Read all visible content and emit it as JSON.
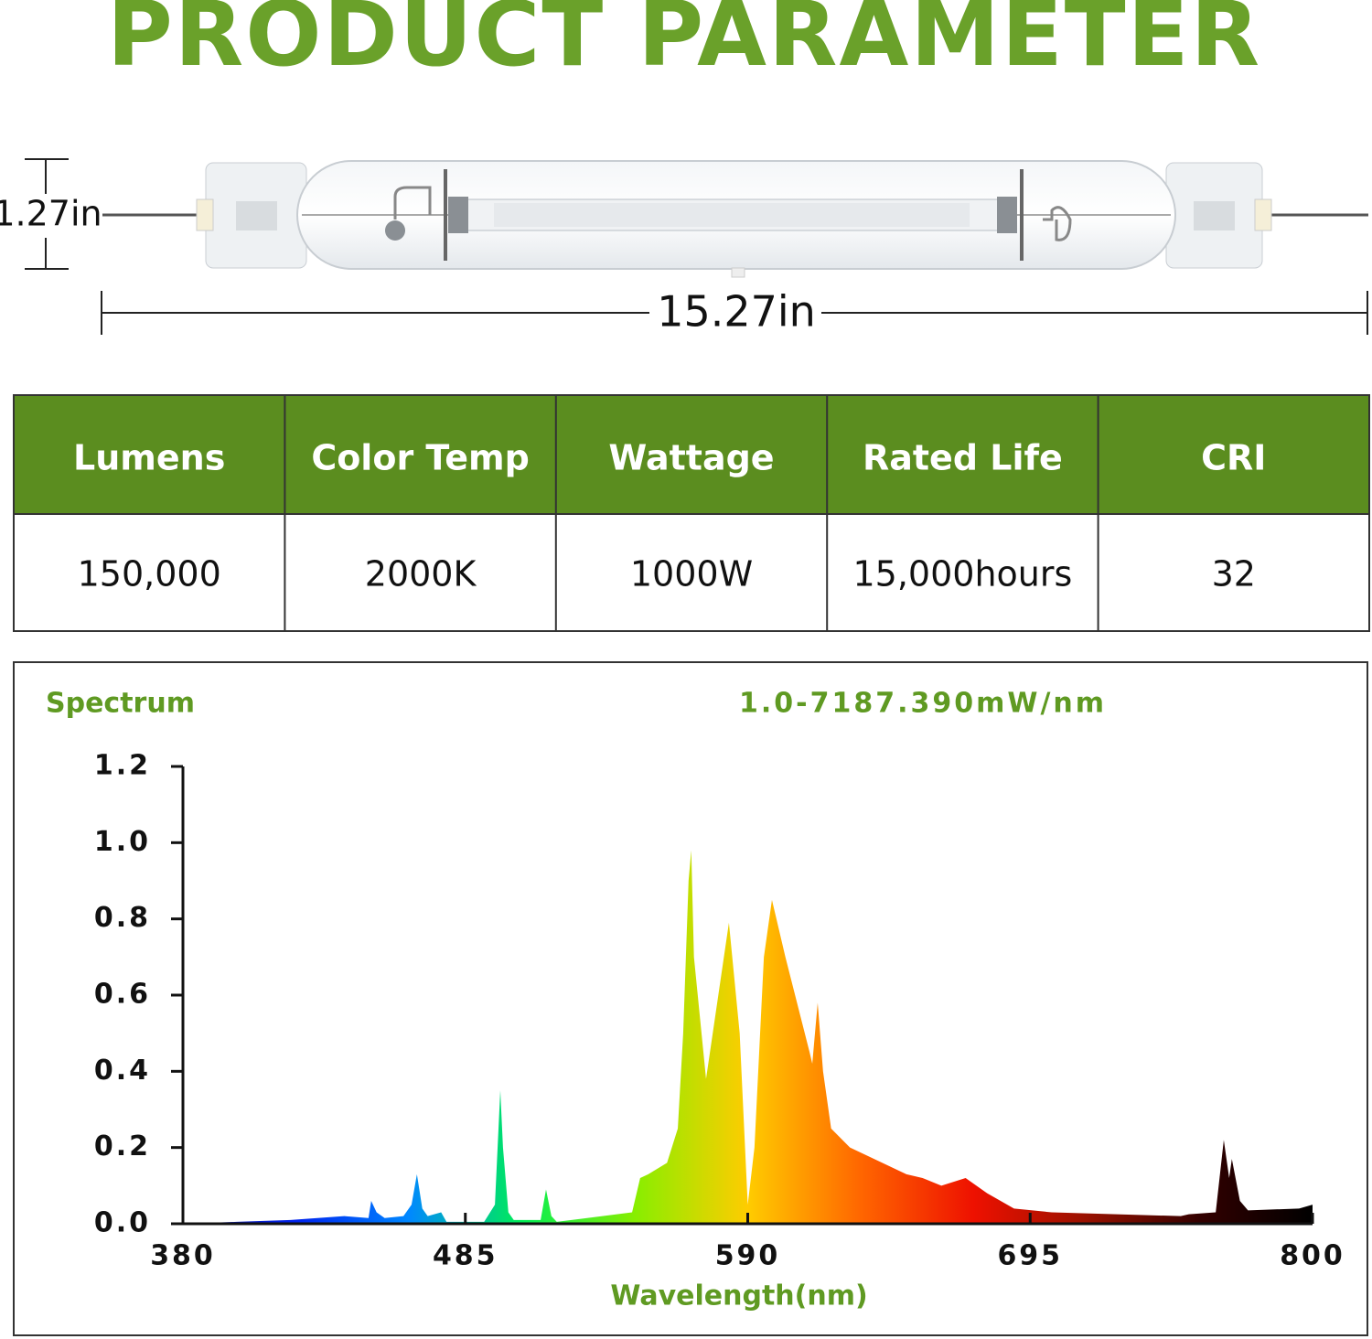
{
  "header": {
    "title": "PRODUCT PARAMETER"
  },
  "dimensions": {
    "height": "1.27in",
    "length": "15.27in"
  },
  "table": {
    "headers": [
      "Lumens",
      "Color Temp",
      "Wattage",
      "Rated Life",
      "CRI"
    ],
    "rows": [
      [
        "150,000",
        "2000K",
        "1000W",
        "15,000hours",
        "32"
      ]
    ]
  },
  "chart_data": {
    "type": "area",
    "title": "Spectrum",
    "subtitle": "1.0-7187.390mW/nm",
    "x_label": "Wavelength(nm)",
    "x": [
      380,
      400,
      420,
      440,
      449,
      450,
      452,
      455,
      462,
      465,
      467,
      469,
      471,
      476,
      478,
      492,
      496,
      497,
      498,
      499,
      501,
      503,
      513,
      515,
      517,
      519,
      547,
      550,
      553,
      560,
      564,
      566,
      568,
      569,
      570,
      574.5,
      583,
      587,
      590,
      592.5,
      596,
      599,
      604,
      613,
      614,
      616,
      618,
      621,
      628,
      649,
      655,
      662,
      671,
      679,
      689,
      703,
      751,
      754,
      764,
      767,
      769,
      770,
      773,
      776,
      795,
      800
    ],
    "values": [
      0,
      0.005,
      0.01,
      0.02,
      0.015,
      0.06,
      0.03,
      0.015,
      0.02,
      0.05,
      0.13,
      0.04,
      0.02,
      0.03,
      0.005,
      0.005,
      0.05,
      0.2,
      0.35,
      0.2,
      0.03,
      0.01,
      0.01,
      0.09,
      0.02,
      0.005,
      0.03,
      0.12,
      0.13,
      0.16,
      0.25,
      0.5,
      0.9,
      0.98,
      0.7,
      0.38,
      0.79,
      0.5,
      0.05,
      0.2,
      0.7,
      0.85,
      0.7,
      0.45,
      0.42,
      0.58,
      0.4,
      0.25,
      0.2,
      0.13,
      0.12,
      0.1,
      0.12,
      0.08,
      0.04,
      0.03,
      0.02,
      0.025,
      0.03,
      0.22,
      0.12,
      0.17,
      0.06,
      0.035,
      0.04,
      0.05
    ],
    "gradient": [
      "#11118a",
      "#0022ee",
      "#0088ff",
      "#00ee55",
      "#88ee00",
      "#ffcc00",
      "#ff6600",
      "#ee1100",
      "#991100",
      "#330000",
      "#000000"
    ],
    "xlim": [
      380,
      800
    ],
    "xticks": [
      380,
      485,
      590,
      695,
      800
    ],
    "ylim": [
      0,
      1.2
    ],
    "yticks": [
      {
        "value": 0,
        "label": "0.0"
      },
      0.2,
      0.4,
      0.6,
      0.8,
      {
        "value": 1,
        "label": "1.0"
      },
      1.2
    ]
  }
}
